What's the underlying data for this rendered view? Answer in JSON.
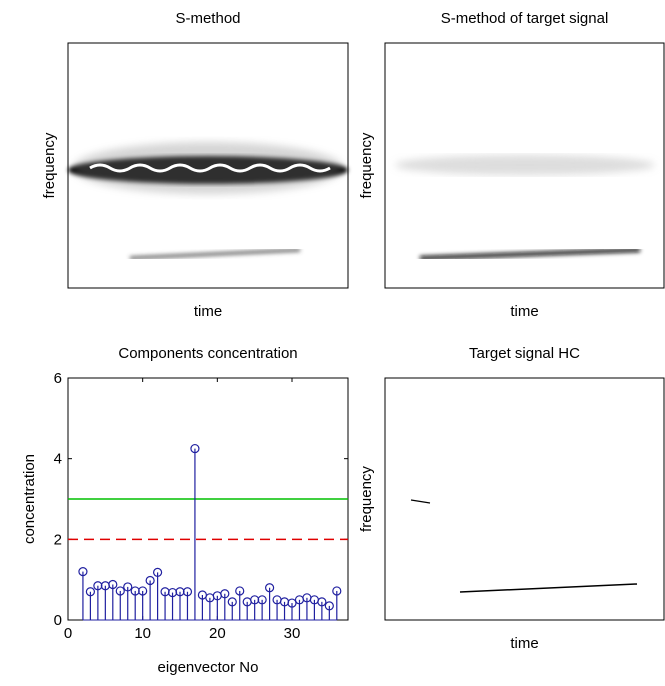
{
  "chart_data": [
    {
      "type": "image",
      "title": "S-method",
      "xlabel": "time",
      "ylabel": "frequency"
    },
    {
      "type": "image",
      "title": "S-method of target signal",
      "xlabel": "time",
      "ylabel": "frequency"
    },
    {
      "type": "stem",
      "title": "Components concentration",
      "xlabel": "eigenvector No",
      "ylabel": "concentration",
      "x": [
        2,
        3,
        4,
        5,
        6,
        7,
        8,
        9,
        10,
        11,
        12,
        13,
        14,
        15,
        16,
        17,
        18,
        19,
        20,
        21,
        22,
        23,
        24,
        25,
        26,
        27,
        28,
        29,
        30,
        31,
        32,
        33,
        34,
        35,
        36
      ],
      "values": [
        1.2,
        0.7,
        0.85,
        0.85,
        0.88,
        0.72,
        0.82,
        0.72,
        0.72,
        0.98,
        1.18,
        0.7,
        0.68,
        0.7,
        0.7,
        4.25,
        0.62,
        0.55,
        0.6,
        0.65,
        0.45,
        0.72,
        0.45,
        0.5,
        0.5,
        0.8,
        0.5,
        0.45,
        0.42,
        0.5,
        0.55,
        0.5,
        0.45,
        0.35,
        0.72
      ],
      "color": "#2020a0",
      "reference_lines": [
        {
          "value": 3,
          "color": "#00c000",
          "style": "solid"
        },
        {
          "value": 2,
          "color": "#e00000",
          "style": "dashed"
        }
      ],
      "xlim": [
        0,
        37.5
      ],
      "ylim": [
        0,
        6
      ],
      "xticks": [
        0,
        10,
        20,
        30
      ],
      "yticks": [
        0,
        2,
        4,
        6
      ]
    },
    {
      "type": "image",
      "title": "Target signal HC",
      "xlabel": "time",
      "ylabel": "frequency"
    }
  ]
}
